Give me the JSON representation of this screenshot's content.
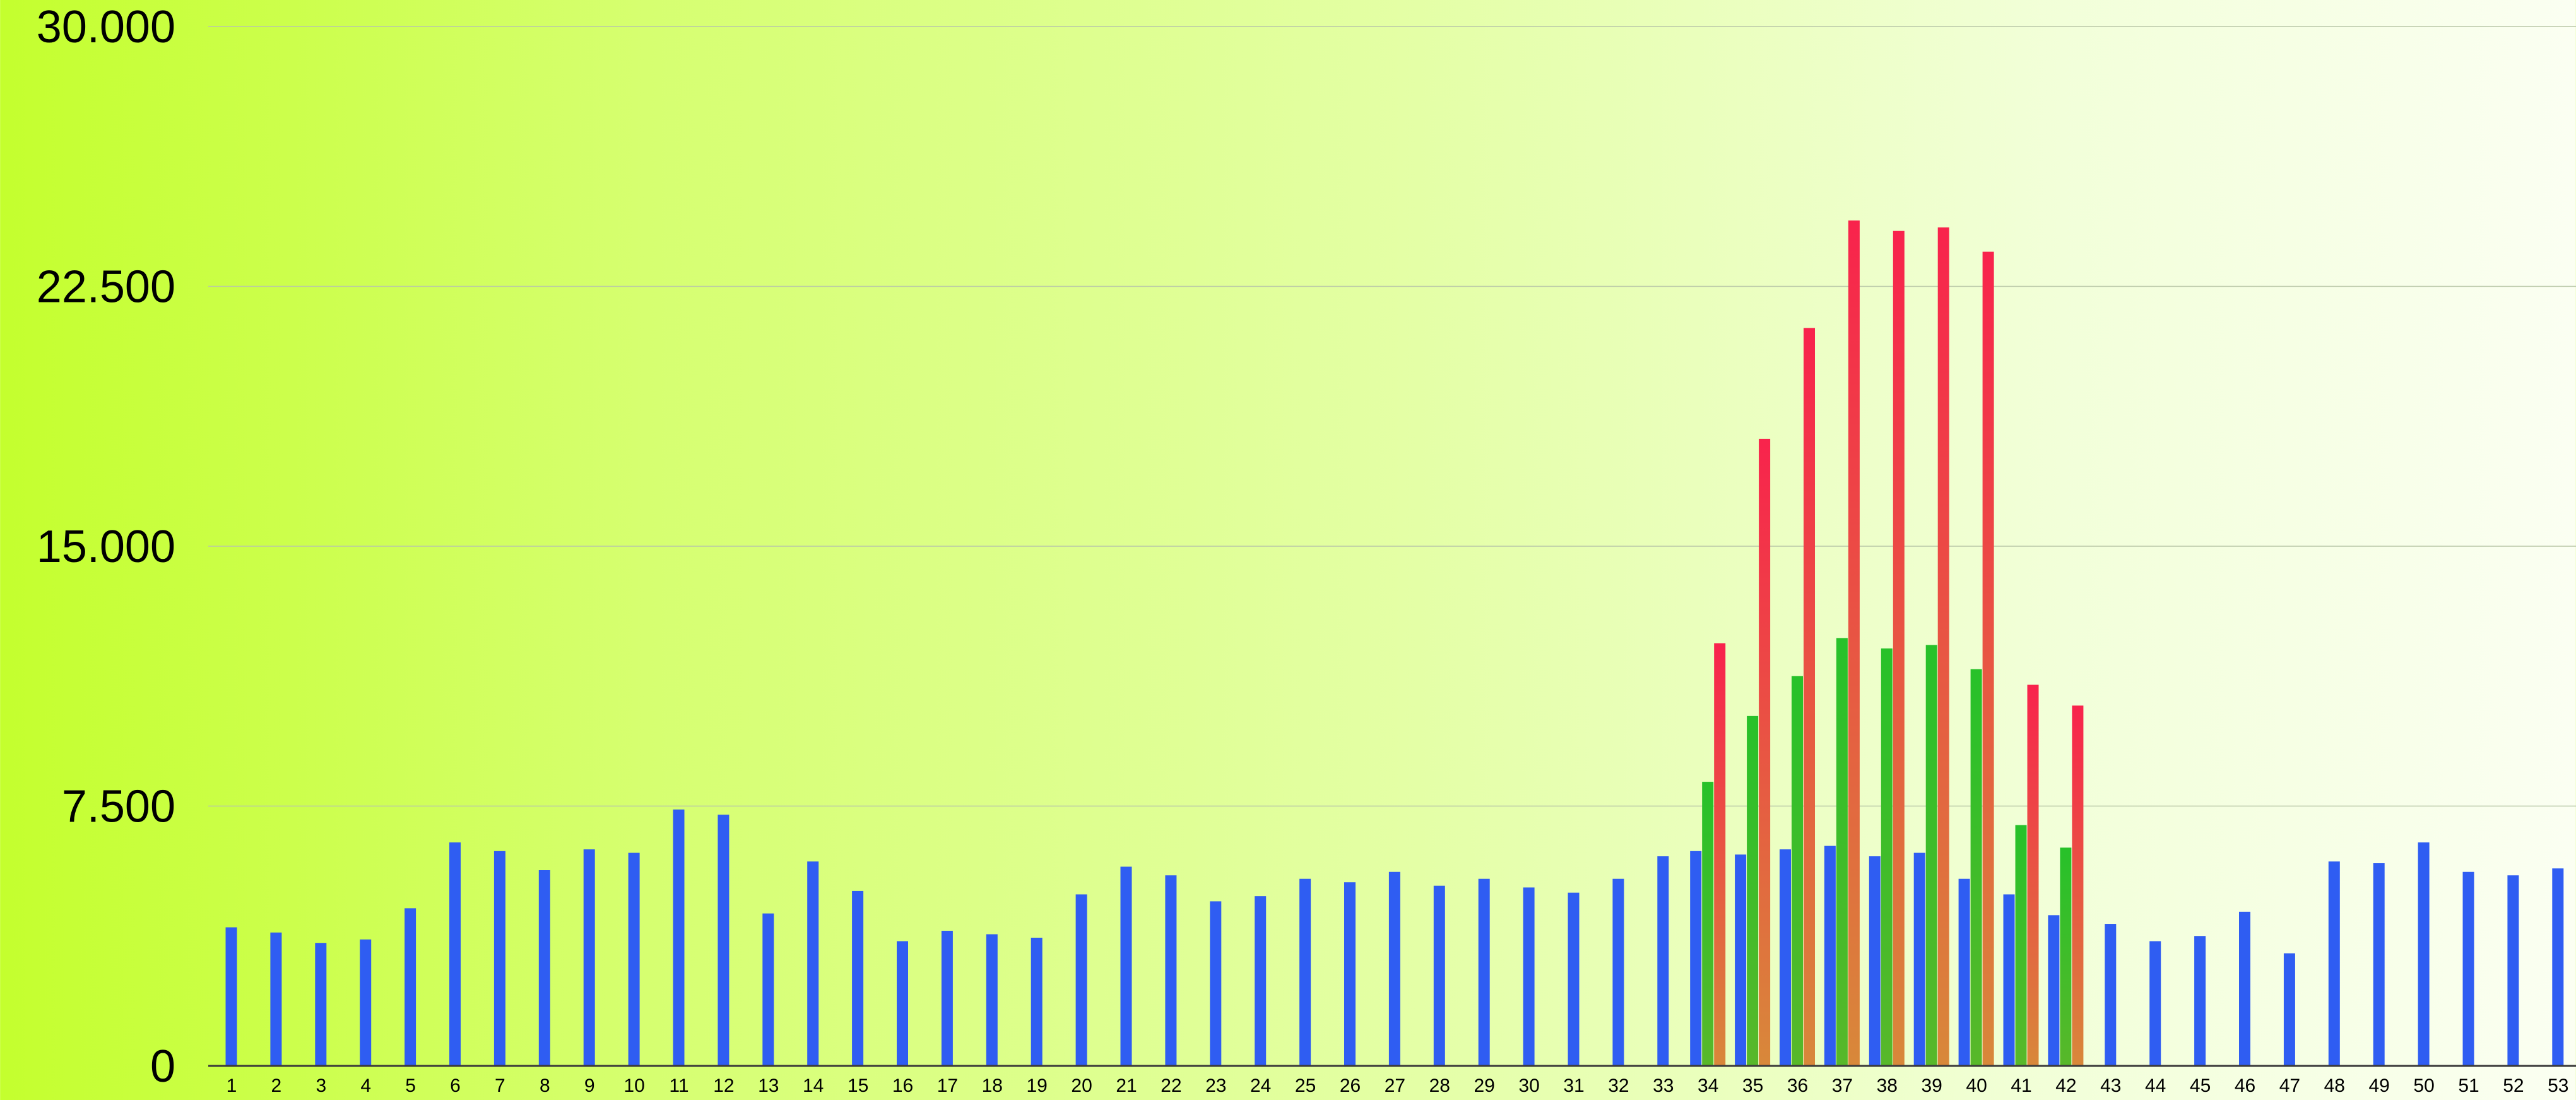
{
  "chart_data": {
    "type": "bar",
    "title": "",
    "xlabel": "",
    "ylabel": "",
    "ylim": [
      0,
      30000
    ],
    "grid": true,
    "y_ticks": [
      0,
      7500,
      15000,
      22500,
      30000
    ],
    "y_tick_labels": [
      "0",
      "7.500",
      "15.000",
      "22.500",
      "30.000"
    ],
    "categories": [
      "1",
      "2",
      "3",
      "4",
      "5",
      "6",
      "7",
      "8",
      "9",
      "10",
      "11",
      "12",
      "13",
      "14",
      "15",
      "16",
      "17",
      "18",
      "19",
      "20",
      "21",
      "22",
      "23",
      "24",
      "25",
      "26",
      "27",
      "28",
      "29",
      "30",
      "31",
      "32",
      "33",
      "34",
      "35",
      "36",
      "37",
      "38",
      "39",
      "40",
      "41",
      "42",
      "43",
      "44",
      "45",
      "46",
      "47",
      "48",
      "49",
      "50",
      "51",
      "52",
      "53"
    ],
    "series": [
      {
        "color": "#2f5df2",
        "values": [
          4000,
          3850,
          3550,
          3650,
          4550,
          6450,
          6200,
          5650,
          6250,
          6150,
          7400,
          7250,
          4400,
          5900,
          5050,
          3600,
          3900,
          3800,
          3700,
          4950,
          5750,
          5500,
          4750,
          4900,
          5400,
          5300,
          5600,
          5200,
          5400,
          5150,
          5000,
          5400,
          6050,
          6200,
          6100,
          6250,
          6350,
          6050,
          6150,
          5400,
          4950,
          4350,
          4100,
          3600,
          3750,
          4450,
          3250,
          5900,
          5850,
          6450,
          5600,
          5500,
          5700
        ]
      },
      {
        "color": "#2bbf2a",
        "values": [
          null,
          null,
          null,
          null,
          null,
          null,
          null,
          null,
          null,
          null,
          null,
          null,
          null,
          null,
          null,
          null,
          null,
          null,
          null,
          null,
          null,
          null,
          null,
          null,
          null,
          null,
          null,
          null,
          null,
          null,
          null,
          null,
          null,
          8200,
          10100,
          11250,
          12350,
          12050,
          12150,
          11450,
          6950,
          6300,
          null,
          null,
          null,
          null,
          null,
          null,
          null,
          null,
          null,
          null,
          null
        ]
      },
      {
        "color": "#f2284a",
        "values": [
          null,
          null,
          null,
          null,
          null,
          null,
          null,
          null,
          null,
          null,
          null,
          null,
          null,
          null,
          null,
          null,
          null,
          null,
          null,
          null,
          null,
          null,
          null,
          null,
          null,
          null,
          null,
          null,
          null,
          null,
          null,
          null,
          null,
          12200,
          18100,
          21300,
          24400,
          24100,
          24200,
          23500,
          11000,
          10400,
          null,
          null,
          null,
          null,
          null,
          null,
          null,
          null,
          null,
          null,
          null
        ]
      }
    ]
  }
}
